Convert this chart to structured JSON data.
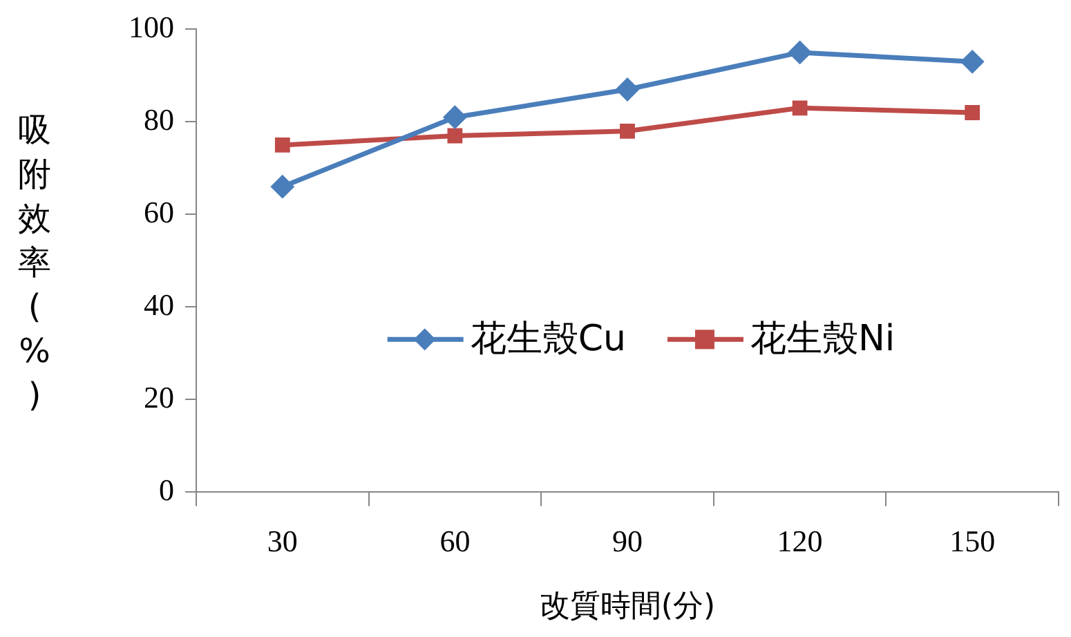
{
  "chart_data": {
    "type": "line",
    "xlabel": "改質時間(分)",
    "ylabel": "吸附效率(%)",
    "categories": [
      "30",
      "60",
      "90",
      "120",
      "150"
    ],
    "series": [
      {
        "name": "花生殼Cu",
        "color": "#4a7ebb",
        "values": [
          66,
          81,
          87,
          95,
          93
        ],
        "marker": "diamond"
      },
      {
        "name": "花生殼Ni",
        "color": "#be4b48",
        "values": [
          75,
          77,
          78,
          83,
          82
        ],
        "marker": "square"
      }
    ],
    "ylim": [
      0,
      100
    ],
    "yticks": [
      0,
      20,
      40,
      60,
      80,
      100
    ],
    "grid": false,
    "legend": "center",
    "line_style": "solid"
  }
}
